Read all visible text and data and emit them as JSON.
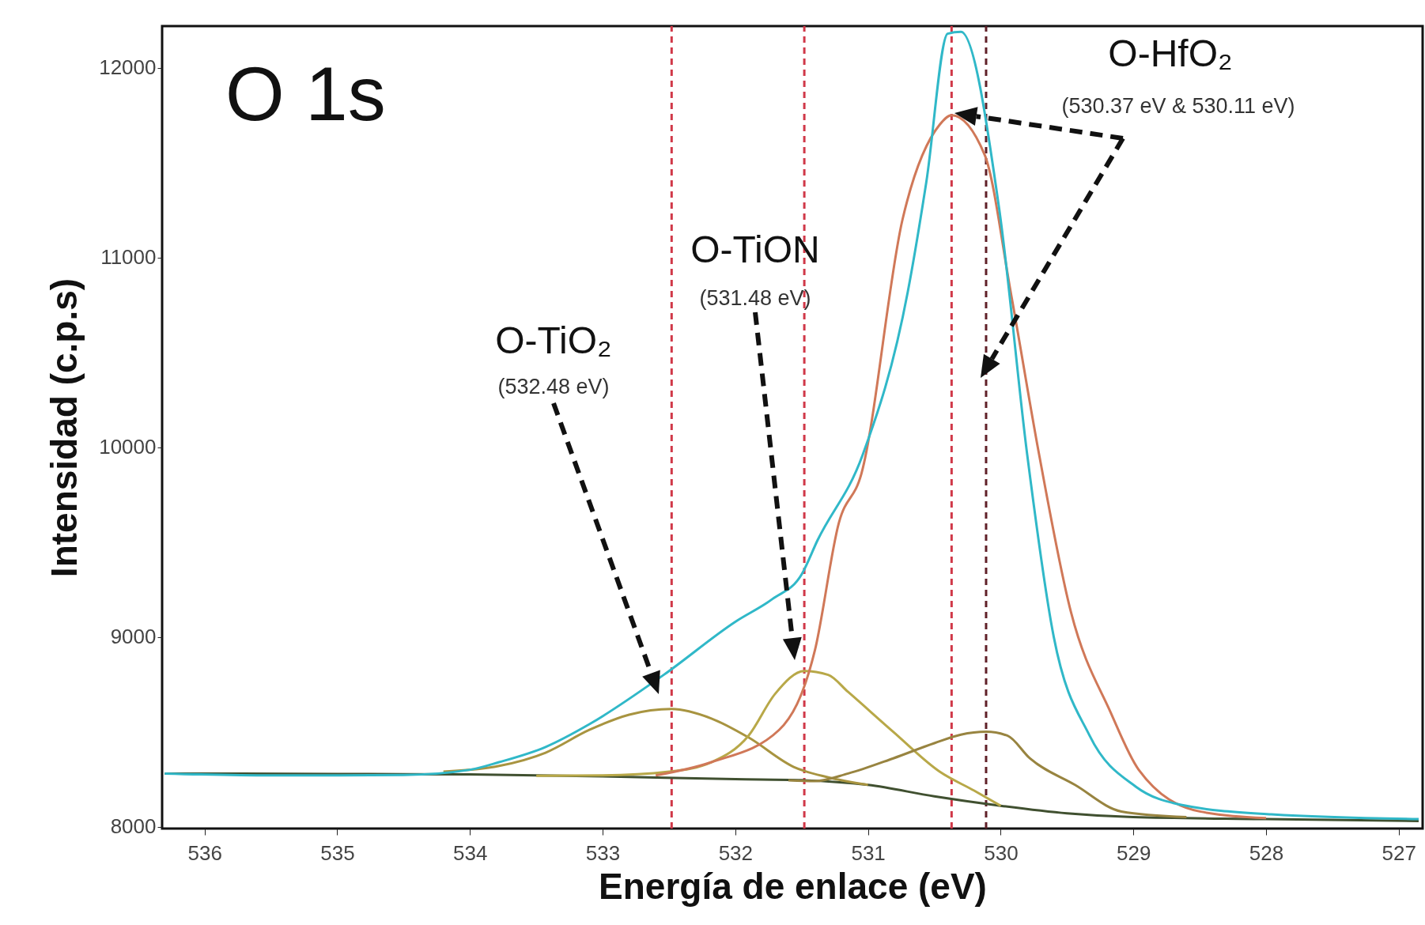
{
  "chart_data": {
    "type": "line",
    "xlabel": "Energía de enlace (eV)",
    "ylabel": "Intensidad (c.p.s)",
    "xlim": [
      536.32,
      526.82
    ],
    "ylim": [
      7990,
      12220
    ],
    "xticks": [
      536,
      535,
      534,
      533,
      532,
      531,
      530,
      529,
      528,
      527
    ],
    "yticks": [
      8000,
      9000,
      10000,
      11000,
      12000
    ],
    "grid": false,
    "series": [
      {
        "type": "line",
        "color": "#405030",
        "x": [
          536.3,
          535,
          534,
          533,
          532,
          531.5,
          531,
          530.5,
          530,
          529.5,
          529,
          528,
          526.85
        ],
        "values": [
          8280,
          8278,
          8275,
          8265,
          8250,
          8245,
          8220,
          8160,
          8110,
          8070,
          8050,
          8040,
          8030
        ]
      },
      {
        "type": "line",
        "color": "#a89440",
        "x": [
          534.2,
          533.78,
          533.43,
          533.1,
          532.8,
          532.48,
          532.18,
          531.9,
          531.56,
          531.3,
          531
        ],
        "values": [
          8290,
          8320,
          8390,
          8510,
          8590,
          8620,
          8570,
          8470,
          8315,
          8260,
          8220
        ]
      },
      {
        "type": "line",
        "color": "#b8a848",
        "x": [
          533.5,
          533,
          532.5,
          532.18,
          531.9,
          531.7,
          531.48,
          531.3,
          531.15,
          530.81,
          530.46,
          530.2,
          530
        ],
        "values": [
          8268,
          8270,
          8290,
          8340,
          8480,
          8700,
          8820,
          8800,
          8710,
          8500,
          8290,
          8190,
          8110
        ]
      },
      {
        "type": "line",
        "color": "#988440",
        "x": [
          531.6,
          531.4,
          531.15,
          530.81,
          530.5,
          530.3,
          530.11,
          529.95,
          529.78,
          529.44,
          529.09,
          528.6
        ],
        "values": [
          8244,
          8240,
          8280,
          8360,
          8440,
          8485,
          8500,
          8480,
          8360,
          8220,
          8080,
          8050
        ]
      },
      {
        "type": "line",
        "color": "#d07858",
        "x": [
          532.6,
          532.18,
          531.67,
          531.4,
          531.22,
          531.05,
          530.74,
          530.46,
          530.37,
          530.12,
          529.92,
          529.71,
          529.47,
          529.17,
          528.96,
          528.5,
          528
        ],
        "values": [
          8270,
          8340,
          8510,
          8930,
          9600,
          9860,
          11200,
          11700,
          11750,
          11540,
          10800,
          9960,
          9130,
          8600,
          8300,
          8080,
          8045
        ]
      },
      {
        "type": "line",
        "color": "#30b8c8",
        "x": [
          536.3,
          535.5,
          535,
          534.5,
          534,
          533.78,
          533.43,
          533.1,
          532.54,
          532,
          531.72,
          531.5,
          531.38,
          531.04,
          530.7,
          530.56,
          530.4,
          530.3,
          530.01,
          529.8,
          529.6,
          529.33,
          528.98,
          528.64,
          527.96,
          526.85
        ],
        "values": [
          8280,
          8270,
          8270,
          8272,
          8300,
          8340,
          8420,
          8540,
          8800,
          9080,
          9200,
          9330,
          9510,
          9960,
          10820,
          11400,
          12180,
          12190,
          11250,
          9960,
          9000,
          8480,
          8210,
          8115,
          8065,
          8040
        ]
      }
    ],
    "ref_lines": [
      {
        "axis": "x",
        "value": 532.48,
        "color": "#d03848",
        "line_style": "dashed"
      },
      {
        "axis": "x",
        "value": 531.48,
        "color": "#d03848",
        "line_style": "dashed"
      },
      {
        "axis": "x",
        "value": 530.37,
        "color": "#d03848",
        "line_style": "dashed"
      },
      {
        "axis": "x",
        "value": 530.11,
        "color": "#602028",
        "line_style": "dashed"
      }
    ],
    "annotations": [
      "O 1s",
      "O-TiO₂ (532.48 eV)",
      "O-TiON (531.48 eV)",
      "O-HfO₂ (530.37 eV & 530.11 eV)"
    ]
  }
}
